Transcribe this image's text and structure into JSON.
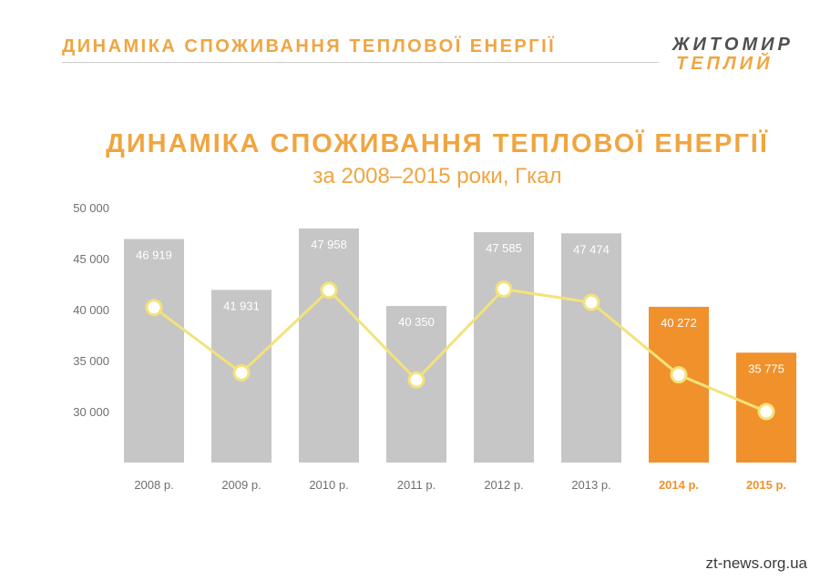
{
  "header": {
    "title": "ДИНАМІКА СПОЖИВАННЯ ТЕПЛОВОЇ ЕНЕРГІЇ",
    "logo_line1": "ЖИТОМИР",
    "logo_line2": "ТЕПЛИЙ"
  },
  "watermark": "zt-news.org.ua",
  "colors": {
    "accent": "#f0a541",
    "bar_gray": "#c6c6c6",
    "bar_orange": "#f0912c",
    "line_yellow": "#f3e27a",
    "tick_gray": "#6f6f6f"
  },
  "chart_data": {
    "type": "bar",
    "title": "ДИНАМІКА СПОЖИВАННЯ ТЕПЛОВОЇ ЕНЕРГІЇ",
    "subtitle": "за 2008–2015 роки, Гкал",
    "categories": [
      "2008 р.",
      "2009 р.",
      "2010 р.",
      "2011 р.",
      "2012 р.",
      "2013 р.",
      "2014 р.",
      "2015 р."
    ],
    "values": [
      46919,
      41931,
      47958,
      40350,
      47585,
      47474,
      40272,
      35775
    ],
    "value_labels": [
      "46 919",
      "41 931",
      "47 958",
      "40 350",
      "47 585",
      "47 474",
      "40 272",
      "35 775"
    ],
    "highlighted": [
      false,
      false,
      false,
      false,
      false,
      false,
      true,
      true
    ],
    "yticks": [
      50000,
      45000,
      40000,
      35000,
      30000
    ],
    "ytick_labels": [
      "50 000",
      "45 000",
      "40 000",
      "35 000",
      "30 000"
    ],
    "ylim": [
      25000,
      50000
    ],
    "grid": false,
    "overlay_line": {
      "type": "line",
      "marker": "circle",
      "note_values_approx": [
        40200,
        33800,
        41900,
        33100,
        42000,
        40700,
        33600,
        30000
      ]
    }
  }
}
